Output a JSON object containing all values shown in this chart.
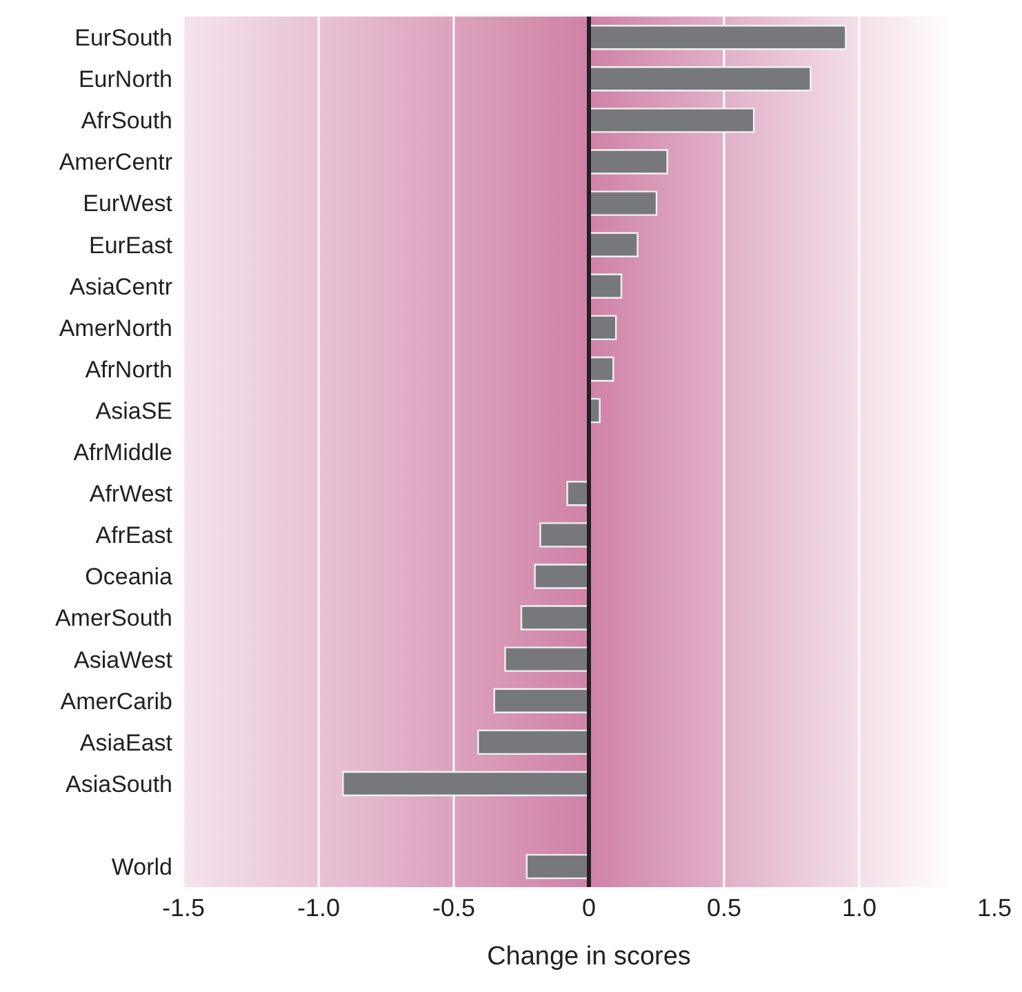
{
  "chart_data": {
    "type": "bar",
    "orientation": "horizontal",
    "xlabel": "Change in scores",
    "categories": [
      "EurSouth",
      "EurNorth",
      "AfrSouth",
      "AmerCentr",
      "EurWest",
      "EurEast",
      "AsiaCentr",
      "AmerNorth",
      "AfrNorth",
      "AsiaSE",
      "AfrMiddle",
      "AfrWest",
      "AfrEast",
      "Oceania",
      "AmerSouth",
      "AsiaWest",
      "AmerCarib",
      "AsiaEast",
      "AsiaSouth",
      null,
      "World"
    ],
    "values": [
      0.95,
      0.82,
      0.61,
      0.29,
      0.25,
      0.18,
      0.12,
      0.1,
      0.09,
      0.04,
      0,
      -0.08,
      -0.18,
      -0.2,
      -0.25,
      -0.31,
      -0.35,
      -0.41,
      -0.91,
      null,
      -0.23
    ],
    "color": "#77787b",
    "xlim": [
      -1.5,
      1.5
    ],
    "xticks": [
      {
        "value": -1.5,
        "label": "-1.5"
      },
      {
        "value": -1,
        "label": "-1.0"
      },
      {
        "value": -0.5,
        "label": "-0.5"
      },
      {
        "value": 0,
        "label": "0"
      },
      {
        "value": 0.5,
        "label": "0.5"
      },
      {
        "value": 1,
        "label": "1.0"
      },
      {
        "value": 1.5,
        "label": "1.5"
      }
    ],
    "grid": "x",
    "ref_lines": [
      {
        "axis": "x",
        "value": 0,
        "color": "#231f20"
      }
    ]
  }
}
